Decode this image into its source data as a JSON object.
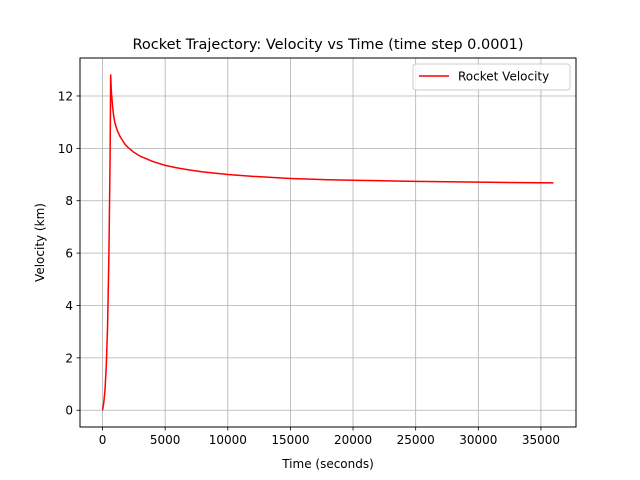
{
  "chart_data": {
    "type": "line",
    "title": "Rocket Trajectory: Velocity vs Time (time step 0.0001)",
    "xlabel": "Time (seconds)",
    "ylabel": "Velocity (km)",
    "xlim": [
      -1800,
      37800
    ],
    "ylim": [
      -0.64,
      13.45
    ],
    "xticks": [
      0,
      5000,
      10000,
      15000,
      20000,
      25000,
      30000,
      35000
    ],
    "yticks": [
      0,
      2,
      4,
      6,
      8,
      10,
      12
    ],
    "grid": true,
    "legend": "top-right",
    "series": [
      {
        "name": "Rocket Velocity",
        "color": "#ff0000",
        "x": [
          0,
          100,
          200,
          300,
          400,
          500,
          600,
          650,
          700,
          800,
          900,
          1000,
          1200,
          1400,
          1600,
          1800,
          2000,
          2500,
          3000,
          4000,
          5000,
          6000,
          7000,
          8000,
          10000,
          12000,
          15000,
          18000,
          20000,
          25000,
          30000,
          36000
        ],
        "y": [
          0,
          0.3,
          0.8,
          1.7,
          3.2,
          5.7,
          9.5,
          12.8,
          12.2,
          11.6,
          11.2,
          10.95,
          10.65,
          10.45,
          10.3,
          10.15,
          10.05,
          9.85,
          9.7,
          9.5,
          9.35,
          9.25,
          9.17,
          9.1,
          9.0,
          8.93,
          8.85,
          8.8,
          8.78,
          8.74,
          8.71,
          8.68
        ]
      }
    ]
  }
}
